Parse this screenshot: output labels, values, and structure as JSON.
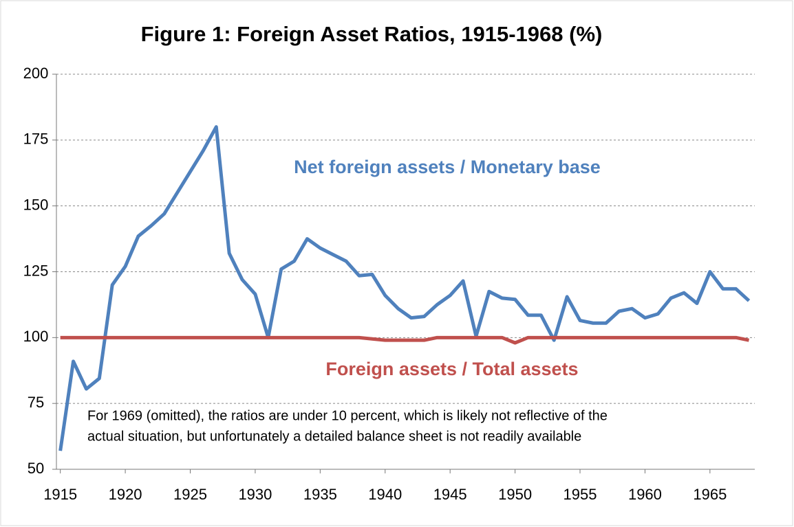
{
  "chart_data": {
    "type": "line",
    "title": "Figure 1: Foreign Asset Ratios, 1915-1968 (%)",
    "x": [
      1915,
      1916,
      1917,
      1918,
      1919,
      1920,
      1921,
      1922,
      1923,
      1924,
      1925,
      1926,
      1927,
      1928,
      1929,
      1930,
      1931,
      1932,
      1933,
      1934,
      1935,
      1936,
      1937,
      1938,
      1939,
      1940,
      1941,
      1942,
      1943,
      1944,
      1945,
      1946,
      1947,
      1948,
      1949,
      1950,
      1951,
      1952,
      1953,
      1954,
      1955,
      1956,
      1957,
      1958,
      1959,
      1960,
      1961,
      1962,
      1963,
      1964,
      1965,
      1966,
      1967,
      1968
    ],
    "series": [
      {
        "name": "Net foreign assets / Monetary base",
        "color": "#4f81bd",
        "values": [
          57,
          91,
          80.5,
          84.5,
          120,
          127,
          138.5,
          142.5,
          147,
          155,
          163,
          171,
          180,
          132,
          122,
          116.5,
          100,
          126,
          129,
          137.5,
          134,
          131.5,
          129,
          123.5,
          124,
          116,
          111,
          107.5,
          108,
          112.5,
          116,
          121.5,
          100.5,
          117.5,
          115,
          114.5,
          108.5,
          108.5,
          99,
          115.5,
          106.5,
          105.5,
          105.5,
          110,
          111,
          107.5,
          109,
          115,
          117,
          113,
          125,
          118.5,
          118.5,
          114
        ]
      },
      {
        "name": "Foreign assets / Total assets",
        "color": "#c0504d",
        "values": [
          100,
          100,
          100,
          100,
          100,
          100,
          100,
          100,
          100,
          100,
          100,
          100,
          100,
          100,
          100,
          100,
          100,
          100,
          100,
          100,
          100,
          100,
          100,
          100,
          99.5,
          99,
          99,
          99,
          99,
          100,
          100,
          100,
          100,
          100,
          100,
          98,
          100,
          100,
          100,
          100,
          100,
          100,
          100,
          100,
          100,
          100,
          100,
          100,
          100,
          100,
          100,
          100,
          100,
          99
        ]
      }
    ],
    "note": [
      "For 1969 (omitted), the ratios  are  under 10 percent, which is likely  not reflective of the",
      "actual situation, but unfortunately a detailed balance sheet is not readily available"
    ],
    "xlim": [
      1914.7,
      1968.45
    ],
    "xticks": [
      1915,
      1920,
      1925,
      1930,
      1935,
      1940,
      1945,
      1950,
      1955,
      1960,
      1965
    ],
    "ylim": [
      50,
      200
    ],
    "yticks": [
      50,
      75,
      100,
      125,
      150,
      175,
      200
    ],
    "grid": true
  }
}
